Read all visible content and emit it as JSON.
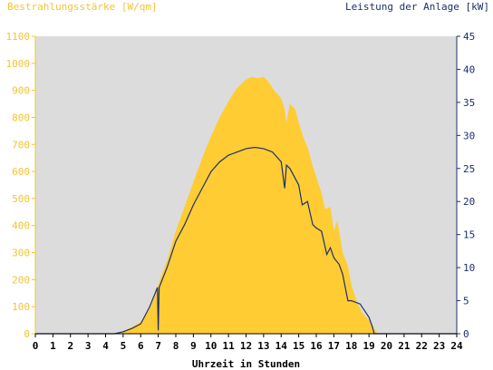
{
  "chart_data": {
    "type": "area",
    "left_axis_title": "Bestrahlungsstärke [W/qm]",
    "right_axis_title": "Leistung der Anlage [kW]",
    "xlabel": "Uhrzeit in Stunden",
    "x_ticks": [
      "0",
      "1",
      "2",
      "3",
      "4",
      "5",
      "6",
      "7",
      "8",
      "9",
      "10",
      "11",
      "12",
      "13",
      "14",
      "15",
      "16",
      "17",
      "18",
      "19",
      "20",
      "21",
      "22",
      "23",
      "24"
    ],
    "xlim": [
      0,
      24
    ],
    "y_left_lim": [
      0,
      1100
    ],
    "y_left_ticks": [
      "0",
      "100",
      "200",
      "300",
      "400",
      "500",
      "600",
      "700",
      "800",
      "900",
      "1000",
      "1100"
    ],
    "y_right_lim": [
      0,
      45
    ],
    "y_right_ticks": [
      "0",
      "5",
      "10",
      "15",
      "20",
      "25",
      "30",
      "35",
      "40",
      "45"
    ],
    "grid": false,
    "colors": {
      "irradiance": "#ffcc33",
      "power": "#1c2f6e",
      "plot_bg": "#dcdcdc",
      "left_axis": "#f4c430",
      "right_axis": "#1c2f6e"
    },
    "series": [
      {
        "name": "Bestrahlungsstärke [W/qm]",
        "axis": "left",
        "x": [
          0,
          4.5,
          5,
          5.5,
          6,
          6.2,
          6.5,
          6.8,
          7,
          7.2,
          7.5,
          8,
          8.5,
          9,
          9.5,
          10,
          10.5,
          11,
          11.5,
          12,
          12.3,
          12.7,
          13,
          13.3,
          13.6,
          14,
          14.2,
          14.3,
          14.5,
          14.8,
          15,
          15.3,
          15.5,
          15.8,
          16,
          16.3,
          16.5,
          16.8,
          17,
          17.2,
          17.5,
          17.8,
          18,
          18.3,
          18.6,
          19,
          19.3,
          19.5,
          24
        ],
        "y": [
          0,
          0,
          10,
          25,
          45,
          60,
          90,
          140,
          180,
          220,
          270,
          380,
          470,
          560,
          650,
          730,
          800,
          860,
          910,
          940,
          950,
          945,
          950,
          930,
          900,
          870,
          830,
          780,
          850,
          830,
          780,
          720,
          690,
          620,
          580,
          520,
          460,
          470,
          380,
          420,
          300,
          250,
          180,
          120,
          80,
          50,
          20,
          0,
          0
        ]
      },
      {
        "name": "Leistung der Anlage [kW]",
        "axis": "right",
        "x": [
          0,
          4.5,
          5,
          5.5,
          6,
          6.5,
          6.8,
          6.95,
          7,
          7.05,
          7.5,
          8,
          8.5,
          9,
          9.5,
          10,
          10.5,
          11,
          11.5,
          12,
          12.5,
          13,
          13.5,
          14,
          14.2,
          14.3,
          14.5,
          15,
          15.2,
          15.5,
          15.8,
          16,
          16.3,
          16.6,
          16.8,
          17,
          17.3,
          17.5,
          17.8,
          18,
          18.5,
          19,
          19.2,
          19.3,
          24
        ],
        "y": [
          0,
          0,
          0.3,
          0.8,
          1.5,
          4,
          6,
          7,
          0.5,
          7,
          10,
          14,
          16.5,
          19.5,
          22,
          24.5,
          26,
          27,
          27.5,
          28,
          28.2,
          28,
          27.5,
          26,
          22,
          25.5,
          25,
          22.5,
          19.5,
          20,
          16.5,
          16,
          15.5,
          12,
          13,
          11.5,
          10.5,
          9,
          5,
          5,
          4.5,
          2.5,
          1,
          0,
          0
        ]
      }
    ]
  }
}
